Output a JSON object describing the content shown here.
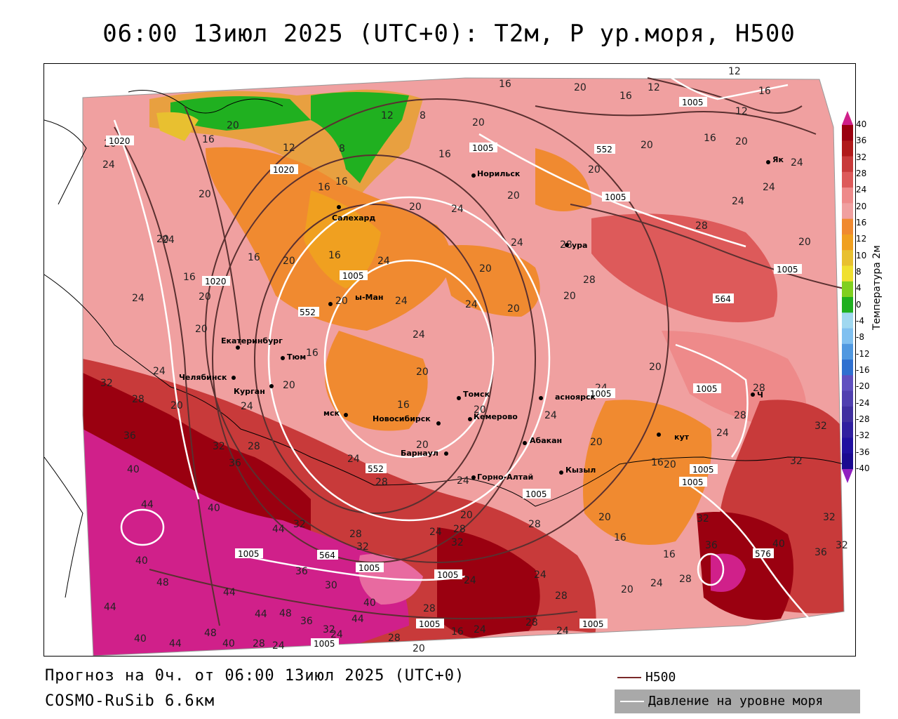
{
  "title": "06:00 13июл 2025 (UTC+0): T2м, P ур.моря, H500",
  "forecast_line": "Прогноз на 0ч. от 06:00 13июл 2025 (UTC+0)",
  "model_line": "COSMO-RuSib 6.6км",
  "legend": {
    "h500_label": "H500",
    "h500_color": "#7a2a2a",
    "slp_label": "Давление на уровне моря",
    "slp_color": "#ffffff"
  },
  "colorbar": {
    "title": "Температура 2м",
    "ticks": [
      "40",
      "36",
      "32",
      "28",
      "24",
      "20",
      "16",
      "12",
      "10",
      "8",
      "4",
      "0",
      "-4",
      "-8",
      "-12",
      "-16",
      "-20",
      "-24",
      "-28",
      "-32",
      "-36",
      "-40"
    ],
    "colors": [
      "#9a0010",
      "#b01a1a",
      "#c83a3a",
      "#dd5a5a",
      "#ee8a8a",
      "#f0a0a0",
      "#f08a30",
      "#f0a020",
      "#e8c030",
      "#f0e030",
      "#80d020",
      "#20b020",
      "#a0d8f0",
      "#80c0f0",
      "#5098e0",
      "#3070d0",
      "#6050c0",
      "#5040b0",
      "#4030a0",
      "#3020a0",
      "#2010a0",
      "#1a0a90"
    ],
    "top_color": "#d0208a",
    "bottom_color": "#9020c0"
  },
  "cities": [
    {
      "name": "Норильск"
    },
    {
      "name": "Салехард"
    },
    {
      "name": "Ханты-Мансийск",
      "shown": "ы-Ман"
    },
    {
      "name": "Екатеринбург"
    },
    {
      "name": "Тюмень",
      "shown": "Тюм"
    },
    {
      "name": "Челябинск"
    },
    {
      "name": "Курган"
    },
    {
      "name": "Омск",
      "shown": "мск"
    },
    {
      "name": "Новосибирск"
    },
    {
      "name": "Томск"
    },
    {
      "name": "Кемерово",
      "shown": "Кемерово"
    },
    {
      "name": "Барнаул"
    },
    {
      "name": "Горно-Алтайск",
      "shown": "Горно-Алтай"
    },
    {
      "name": "Абакан"
    },
    {
      "name": "Кызыл"
    },
    {
      "name": "Красноярск",
      "shown": "асноярск"
    },
    {
      "name": "Тура",
      "shown": "ура"
    },
    {
      "name": "Иркутск",
      "shown": "кут"
    },
    {
      "name": "Якутск",
      "shown": "Як"
    },
    {
      "name": "Чита",
      "shown": "Ч"
    }
  ],
  "temperature_labels": [
    "16",
    "20",
    "12",
    "8",
    "24",
    "28",
    "32",
    "36",
    "40",
    "44",
    "48"
  ],
  "pressure_labels": [
    "1020",
    "1005",
    "552",
    "564",
    "576",
    "1005",
    "1020"
  ]
}
